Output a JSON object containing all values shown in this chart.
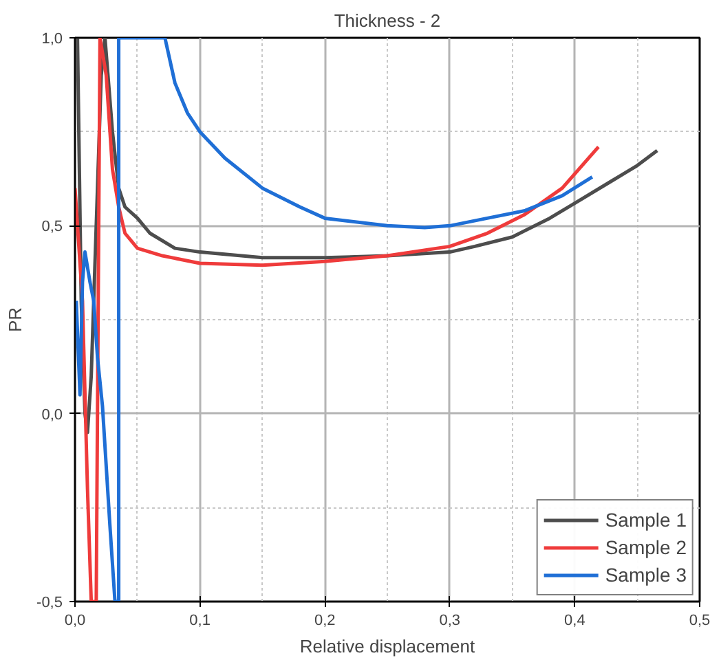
{
  "chart_data": {
    "type": "line",
    "title": "Thickness - 2",
    "xlabel": "Relative displacement",
    "ylabel": "PR",
    "xlim": [
      0,
      0.5
    ],
    "ylim": [
      -0.5,
      1.0
    ],
    "xticks": [
      {
        "value": 0,
        "label": "0,0"
      },
      {
        "value": 0.1,
        "label": "0,1"
      },
      {
        "value": 0.2,
        "label": "0,2"
      },
      {
        "value": 0.3,
        "label": "0,3"
      },
      {
        "value": 0.4,
        "label": "0,4"
      },
      {
        "value": 0.5,
        "label": "0,5"
      }
    ],
    "yticks": [
      {
        "value": -0.5,
        "label": "-0,5"
      },
      {
        "value": 0,
        "label": "0,0"
      },
      {
        "value": 0.5,
        "label": "0,5"
      },
      {
        "value": 1.0,
        "label": "1,0"
      }
    ],
    "grid": true,
    "legend": "bottom right",
    "marker": "none",
    "line_style": "solid",
    "series": [
      {
        "name": "Sample 1",
        "color": "#4d4d4d",
        "x": [
          0.002,
          0.005,
          0.008,
          0.01,
          0.013,
          0.017,
          0.021,
          0.024,
          0.03,
          0.035,
          0.04,
          0.05,
          0.06,
          0.08,
          0.1,
          0.15,
          0.2,
          0.25,
          0.3,
          0.32,
          0.35,
          0.38,
          0.4,
          0.43,
          0.45,
          0.466
        ],
        "values": [
          1.0,
          0.3,
          0.0,
          -0.05,
          0.1,
          0.5,
          0.9,
          1.0,
          0.75,
          0.6,
          0.55,
          0.52,
          0.48,
          0.44,
          0.43,
          0.415,
          0.415,
          0.42,
          0.43,
          0.445,
          0.47,
          0.52,
          0.56,
          0.62,
          0.66,
          0.7
        ]
      },
      {
        "name": "Sample 2",
        "color": "#ef3b3b",
        "x": [
          0.0,
          0.003,
          0.006,
          0.01,
          0.013,
          0.017,
          0.02,
          0.025,
          0.03,
          0.035,
          0.04,
          0.05,
          0.07,
          0.1,
          0.15,
          0.2,
          0.25,
          0.3,
          0.33,
          0.36,
          0.39,
          0.419
        ],
        "values": [
          0.6,
          0.45,
          0.3,
          -0.2,
          -0.5,
          -0.5,
          1.0,
          0.9,
          0.65,
          0.55,
          0.48,
          0.44,
          0.42,
          0.4,
          0.395,
          0.405,
          0.42,
          0.445,
          0.48,
          0.53,
          0.6,
          0.71
        ]
      },
      {
        "name": "Sample 3",
        "color": "#1f6fd6",
        "x": [
          0.001,
          0.004,
          0.006,
          0.008,
          0.012,
          0.015,
          0.018,
          0.022,
          0.028,
          0.032,
          0.035,
          0.035,
          0.072,
          0.08,
          0.09,
          0.1,
          0.12,
          0.15,
          0.18,
          0.2,
          0.25,
          0.28,
          0.3,
          0.33,
          0.36,
          0.39,
          0.414
        ],
        "values": [
          0.3,
          0.05,
          0.35,
          0.43,
          0.35,
          0.3,
          0.15,
          0.02,
          -0.3,
          -0.5,
          -0.5,
          1.0,
          1.0,
          0.88,
          0.8,
          0.75,
          0.68,
          0.6,
          0.55,
          0.52,
          0.5,
          0.495,
          0.5,
          0.52,
          0.54,
          0.58,
          0.63
        ]
      }
    ]
  }
}
